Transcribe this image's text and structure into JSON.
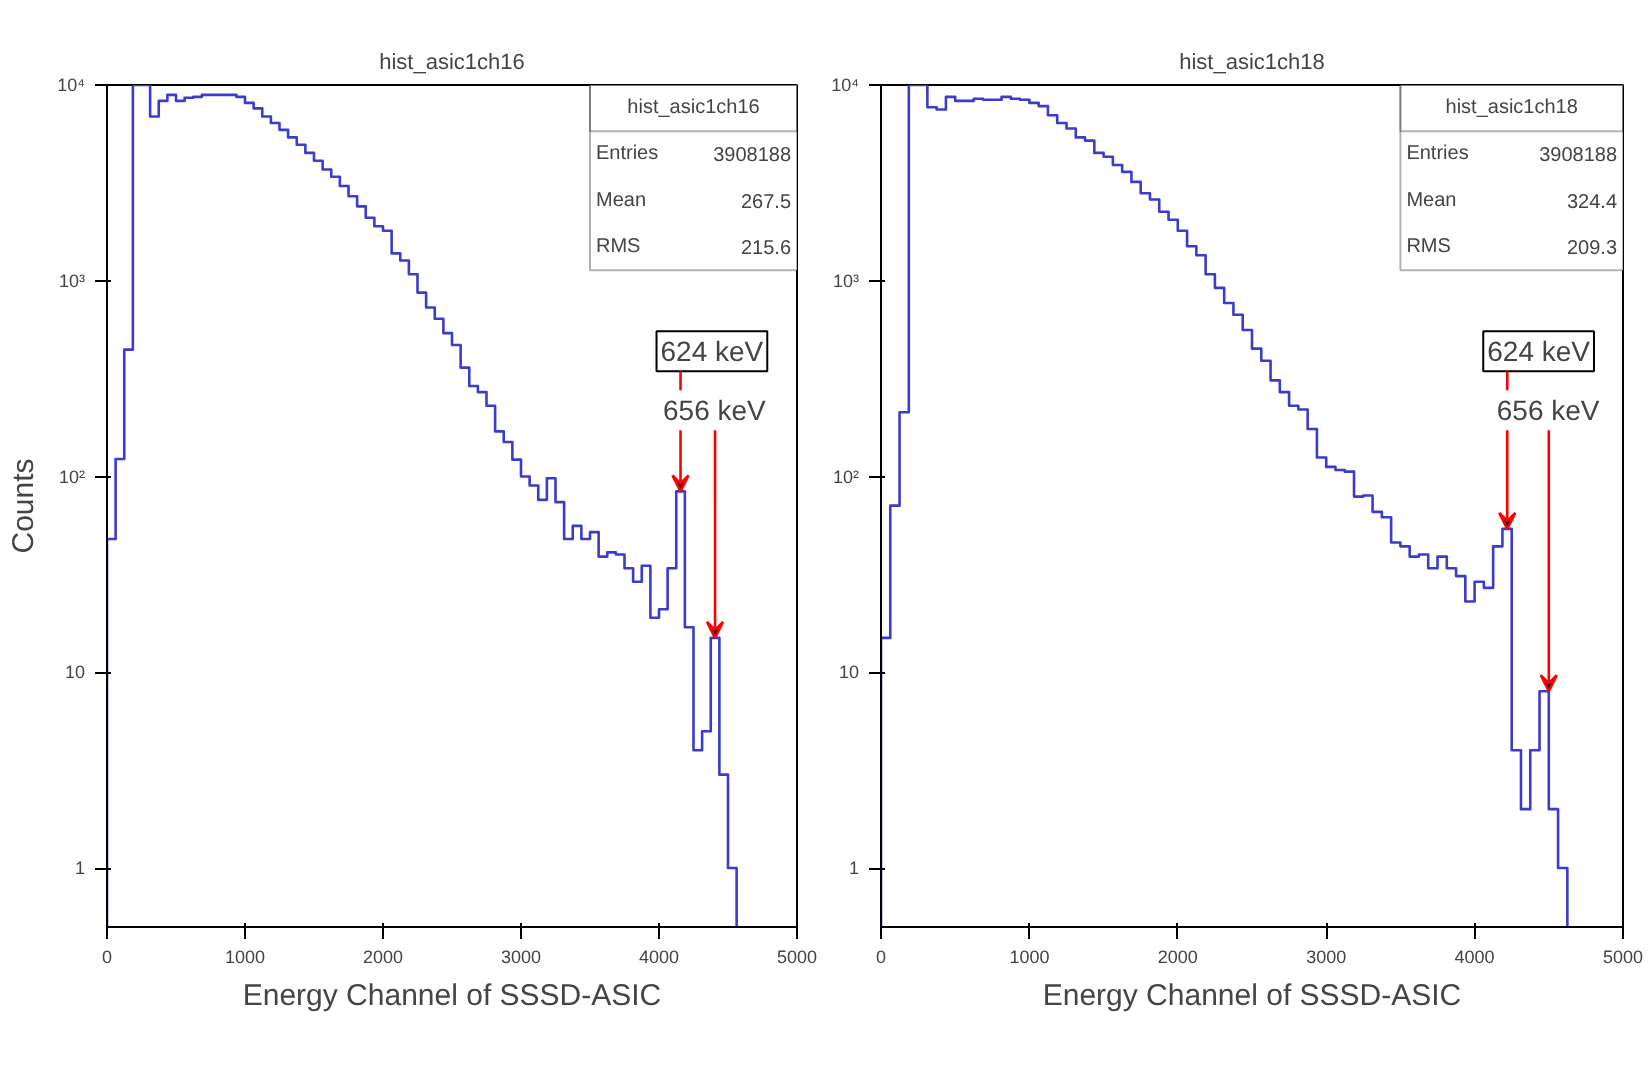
{
  "chart_data": [
    {
      "type": "histogram",
      "title": "hist_asic1ch16",
      "xlabel": "Energy Channel of SSSD-ASIC",
      "ylabel": "Counts",
      "log": "y",
      "grid": false,
      "legend": false,
      "xlim": [
        0,
        5000
      ],
      "xticks": [
        0,
        1000,
        2000,
        3000,
        4000,
        5000
      ],
      "ylim": [
        0.5,
        10000
      ],
      "yticks": [
        1,
        10,
        {
          "value": 100,
          "label": "10²"
        },
        {
          "value": 1000,
          "label": "10³"
        },
        {
          "value": 10000,
          "label": "10⁴"
        }
      ],
      "bins": [
        0,
        62.5,
        125,
        187.5,
        250,
        312.5,
        375,
        437.5,
        500,
        562.5,
        625,
        687.5,
        750,
        812.5,
        875,
        937.5,
        1000,
        1062.5,
        1125,
        1187.5,
        1250,
        1312.5,
        1375,
        1437.5,
        1500,
        1562.5,
        1625,
        1687.5,
        1750,
        1812.5,
        1875,
        1937.5,
        2000,
        2062.5,
        2125,
        2187.5,
        2250,
        2312.5,
        2375,
        2437.5,
        2500,
        2562.5,
        2625,
        2687.5,
        2750,
        2812.5,
        2875,
        2937.5,
        3000,
        3062.5,
        3125,
        3187.5,
        3250,
        3312.5,
        3375,
        3437.5,
        3500,
        3562.5,
        3625,
        3687.5,
        3750,
        3812.5,
        3875,
        3937.5,
        4000,
        4062.5,
        4125,
        4187.5,
        4250,
        4312.5,
        4375,
        4437.5,
        4500,
        4562.5
      ],
      "color": "#3b3bcc",
      "values": [
        48,
        123,
        445,
        10000,
        10000,
        6900,
        8300,
        8900,
        8300,
        8600,
        8700,
        8900,
        8900,
        8900,
        8900,
        8700,
        8100,
        7600,
        6900,
        6400,
        5900,
        5400,
        4950,
        4500,
        4100,
        3700,
        3400,
        3050,
        2700,
        2400,
        2100,
        1900,
        1800,
        1380,
        1270,
        1080,
        870,
        730,
        640,
        540,
        470,
        360,
        290,
        270,
        230,
        170,
        150,
        122,
        100,
        90,
        76,
        98,
        74,
        48,
        56,
        48,
        52,
        39,
        41,
        40,
        34,
        29,
        35,
        19,
        21,
        34,
        84,
        17,
        4,
        5,
        15,
        3,
        1
      ],
      "annotations": [
        "hist_asic1ch16",
        "Entries",
        "3908188",
        "Mean",
        "267.5",
        "RMS",
        "215.6",
        {
          "text": "624 keV",
          "x": 4156,
          "y": 84
        },
        {
          "text": "656 keV",
          "x": 4406,
          "y": 15
        }
      ]
    },
    {
      "type": "histogram",
      "title": "hist_asic1ch18",
      "xlabel": "Energy Channel of SSSD-ASIC",
      "log": "y",
      "grid": false,
      "legend": false,
      "xlim": [
        0,
        5000
      ],
      "xticks": [
        0,
        1000,
        2000,
        3000,
        4000,
        5000
      ],
      "ylim": [
        0.5,
        10000
      ],
      "yticks": [
        1,
        10,
        {
          "value": 100,
          "label": "10²"
        },
        {
          "value": 1000,
          "label": "10³"
        },
        {
          "value": 10000,
          "label": "10⁴"
        }
      ],
      "bins": [
        0,
        62.5,
        125,
        187.5,
        250,
        312.5,
        375,
        437.5,
        500,
        562.5,
        625,
        687.5,
        750,
        812.5,
        875,
        937.5,
        1000,
        1062.5,
        1125,
        1187.5,
        1250,
        1312.5,
        1375,
        1437.5,
        1500,
        1562.5,
        1625,
        1687.5,
        1750,
        1812.5,
        1875,
        1937.5,
        2000,
        2062.5,
        2125,
        2187.5,
        2250,
        2312.5,
        2375,
        2437.5,
        2500,
        2562.5,
        2625,
        2687.5,
        2750,
        2812.5,
        2875,
        2937.5,
        3000,
        3062.5,
        3125,
        3187.5,
        3250,
        3312.5,
        3375,
        3437.5,
        3500,
        3562.5,
        3625,
        3687.5,
        3750,
        3812.5,
        3875,
        3937.5,
        4000,
        4062.5,
        4125,
        4187.5,
        4250,
        4312.5,
        4375,
        4437.5,
        4500,
        4562.5,
        4625
      ],
      "color": "#3b3bcc",
      "values": [
        15,
        71,
        213,
        10000,
        10000,
        7700,
        7500,
        8700,
        8300,
        8300,
        8500,
        8400,
        8400,
        8700,
        8500,
        8400,
        8100,
        7800,
        7000,
        6400,
        6000,
        5400,
        5200,
        4500,
        4300,
        3900,
        3600,
        3200,
        2800,
        2600,
        2250,
        2050,
        1800,
        1500,
        1350,
        1080,
        920,
        770,
        670,
        560,
        450,
        390,
        310,
        270,
        230,
        220,
        175,
        125,
        112,
        108,
        106,
        79,
        80,
        66,
        62,
        46,
        44,
        39,
        40,
        34,
        39,
        34,
        31,
        23,
        29,
        27,
        44,
        54,
        4,
        2,
        4,
        8,
        2,
        1
      ],
      "annotations": [
        "hist_asic1ch18",
        "Entries",
        "3908188",
        "Mean",
        "324.4",
        "RMS",
        "209.3",
        {
          "text": "624 keV",
          "x": 4220,
          "y": 54
        },
        {
          "text": "656 keV",
          "x": 4500,
          "y": 8
        }
      ]
    }
  ]
}
